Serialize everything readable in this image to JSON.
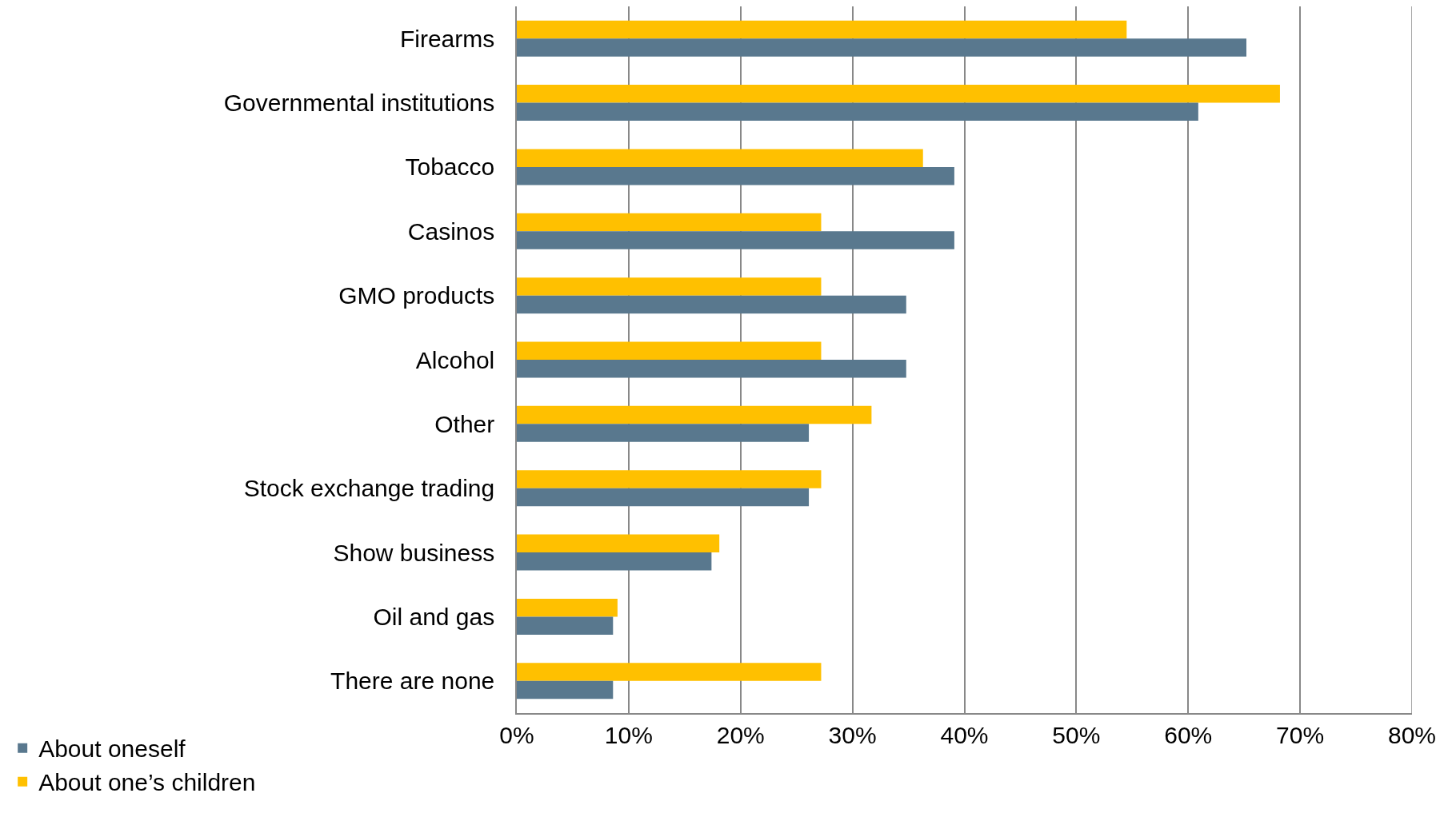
{
  "chart_data": {
    "type": "bar",
    "orientation": "horizontal",
    "categories": [
      "Firearms",
      "Governmental institutions",
      "Tobacco",
      "Casinos",
      "GMO products",
      "Alcohol",
      "Other",
      "Stock exchange trading",
      "Show business",
      "Oil and gas",
      "There are none"
    ],
    "series": [
      {
        "name": "About oneself",
        "color": "#59788e",
        "values": [
          65.2,
          60.9,
          39.1,
          39.1,
          34.8,
          34.8,
          26.1,
          26.1,
          17.4,
          8.6,
          8.6
        ]
      },
      {
        "name": "About one’s children",
        "color": "#ffc000",
        "values": [
          54.5,
          68.2,
          36.3,
          27.2,
          27.2,
          27.2,
          31.7,
          27.2,
          18.1,
          9.0,
          27.2
        ]
      }
    ],
    "xlim": [
      0,
      80
    ],
    "xticks": [
      {
        "value": 0,
        "label": "0%"
      },
      {
        "value": 10,
        "label": "10%"
      },
      {
        "value": 20,
        "label": "20%"
      },
      {
        "value": 30,
        "label": "30%"
      },
      {
        "value": 40,
        "label": "40%"
      },
      {
        "value": 50,
        "label": "50%"
      },
      {
        "value": 60,
        "label": "60%"
      },
      {
        "value": 70,
        "label": "70%"
      },
      {
        "value": 80,
        "label": "80%"
      }
    ],
    "grid": "x",
    "legend": "bottom left"
  }
}
